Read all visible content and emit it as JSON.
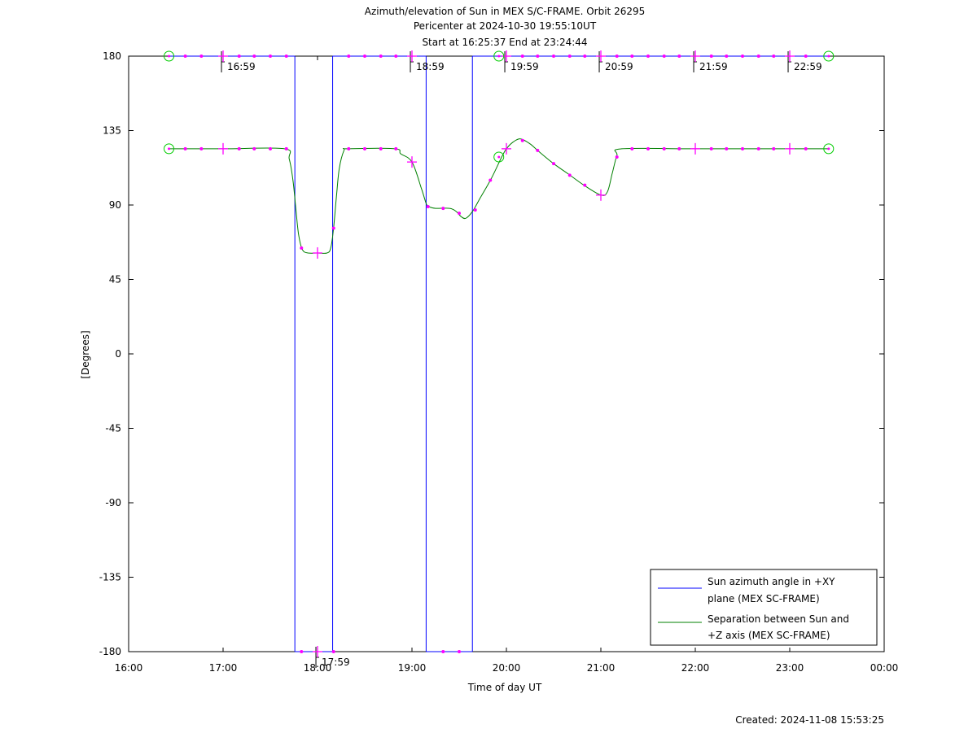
{
  "chart_data": {
    "type": "line",
    "title": [
      "Azimuth/elevation of Sun in MEX S/C-FRAME.  Orbit 26295",
      "Pericenter at 2024-10-30 19:55:10UT",
      "Start at 16:25:37 End at 23:24:44"
    ],
    "xlabel": "Time of day UT",
    "ylabel": "[Degrees]",
    "xlim": [
      16.0,
      24.0
    ],
    "ylim": [
      -180,
      180
    ],
    "x_ticks": [
      16,
      17,
      18,
      19,
      20,
      21,
      22,
      23,
      24
    ],
    "x_tick_labels": [
      "16:00",
      "17:00",
      "18:00",
      "19:00",
      "20:00",
      "21:00",
      "22:00",
      "23:00",
      "00:00"
    ],
    "y_ticks": [
      180,
      135,
      90,
      45,
      0,
      -45,
      -90,
      -135,
      -180
    ],
    "y_tick_labels": [
      "180",
      "135",
      "90",
      "45",
      "0",
      "-45",
      "-90",
      "-135",
      "-180"
    ],
    "legend_position": "bottom-right",
    "footer": "Created: 2024-11-08 15:53:25",
    "colors": {
      "azimuth": "#0000ff",
      "separation": "#008000",
      "markers": "#ff00ff",
      "circles": "#00cc00"
    },
    "series": [
      {
        "name": "Sun azimuth angle in +XY plane (MEX SC-FRAME)",
        "legend_lines": [
          "Sun azimuth angle in +XY",
          "plane (MEX SC-FRAME)"
        ],
        "color": "#0000ff",
        "segments": [
          [
            [
              16.427,
              180
            ],
            [
              17.76,
              180
            ]
          ],
          [
            [
              17.76,
              180
            ],
            [
              17.76,
              -180
            ]
          ],
          [
            [
              17.76,
              -180
            ],
            [
              18.16,
              -180
            ]
          ],
          [
            [
              18.16,
              -180
            ],
            [
              18.16,
              180
            ]
          ],
          [
            [
              18.16,
              180
            ],
            [
              19.15,
              180
            ]
          ],
          [
            [
              19.15,
              180
            ],
            [
              19.15,
              -180
            ]
          ],
          [
            [
              19.15,
              -180
            ],
            [
              19.64,
              -180
            ]
          ],
          [
            [
              19.64,
              -180
            ],
            [
              19.64,
              180
            ]
          ],
          [
            [
              19.64,
              180
            ],
            [
              23.412,
              180
            ]
          ]
        ]
      },
      {
        "name": "Separation between Sun and +Z axis (MEX SC-FRAME)",
        "legend_lines": [
          "Separation between Sun and",
          "+Z axis (MEX SC-FRAME)"
        ],
        "color": "#008000",
        "points": [
          [
            16.427,
            124
          ],
          [
            17.0,
            124
          ],
          [
            17.65,
            124
          ],
          [
            17.7,
            118
          ],
          [
            17.74,
            105
          ],
          [
            17.77,
            88
          ],
          [
            17.8,
            72
          ],
          [
            17.84,
            63
          ],
          [
            17.9,
            61
          ],
          [
            18.0,
            61
          ],
          [
            18.1,
            61
          ],
          [
            18.14,
            64
          ],
          [
            18.17,
            76
          ],
          [
            18.2,
            95
          ],
          [
            18.23,
            112
          ],
          [
            18.28,
            123
          ],
          [
            18.32,
            124
          ],
          [
            18.82,
            124
          ],
          [
            18.88,
            121
          ],
          [
            19.0,
            116
          ],
          [
            19.1,
            100
          ],
          [
            19.15,
            91
          ],
          [
            19.18,
            89
          ],
          [
            19.25,
            88
          ],
          [
            19.4,
            88
          ],
          [
            19.47,
            86
          ],
          [
            19.52,
            83
          ],
          [
            19.57,
            82
          ],
          [
            19.64,
            86
          ],
          [
            19.72,
            94
          ],
          [
            19.84,
            106
          ],
          [
            19.95,
            119
          ],
          [
            20.0,
            124
          ],
          [
            20.07,
            128
          ],
          [
            20.15,
            130
          ],
          [
            20.25,
            127
          ],
          [
            20.35,
            122
          ],
          [
            20.5,
            115
          ],
          [
            20.65,
            109
          ],
          [
            20.82,
            102
          ],
          [
            21.0,
            96
          ],
          [
            21.07,
            98
          ],
          [
            21.12,
            109
          ],
          [
            21.17,
            120
          ],
          [
            21.22,
            124
          ],
          [
            22.0,
            124
          ],
          [
            23.0,
            124
          ],
          [
            23.412,
            124
          ]
        ]
      }
    ],
    "orbit_labels": [
      {
        "text": "16:59",
        "x": 16.983,
        "y": 180
      },
      {
        "text": "17:59",
        "x": 17.983,
        "y": -180
      },
      {
        "text": "18:59",
        "x": 18.983,
        "y": 180
      },
      {
        "text": "19:59",
        "x": 19.983,
        "y": 180
      },
      {
        "text": "20:59",
        "x": 20.983,
        "y": 180
      },
      {
        "text": "21:59",
        "x": 21.983,
        "y": 180
      },
      {
        "text": "22:59",
        "x": 22.983,
        "y": 180
      }
    ],
    "small_markers": [
      [
        16.6,
        180
      ],
      [
        16.77,
        180
      ],
      [
        17.17,
        180
      ],
      [
        17.33,
        180
      ],
      [
        17.5,
        180
      ],
      [
        17.67,
        180
      ],
      [
        18.33,
        180
      ],
      [
        18.5,
        180
      ],
      [
        18.67,
        180
      ],
      [
        18.83,
        180
      ],
      [
        20.17,
        180
      ],
      [
        20.33,
        180
      ],
      [
        20.5,
        180
      ],
      [
        20.67,
        180
      ],
      [
        20.83,
        180
      ],
      [
        21.17,
        180
      ],
      [
        21.33,
        180
      ],
      [
        21.5,
        180
      ],
      [
        21.67,
        180
      ],
      [
        21.83,
        180
      ],
      [
        22.17,
        180
      ],
      [
        22.33,
        180
      ],
      [
        22.5,
        180
      ],
      [
        22.67,
        180
      ],
      [
        22.83,
        180
      ],
      [
        23.17,
        180
      ],
      [
        17.83,
        -180
      ],
      [
        18.17,
        -180
      ],
      [
        19.33,
        -180
      ],
      [
        19.5,
        -180
      ],
      [
        16.6,
        124
      ],
      [
        16.77,
        124
      ],
      [
        17.17,
        124
      ],
      [
        17.33,
        124
      ],
      [
        17.5,
        124
      ],
      [
        17.67,
        124
      ],
      [
        17.83,
        64
      ],
      [
        18.17,
        76
      ],
      [
        18.33,
        124
      ],
      [
        18.5,
        124
      ],
      [
        18.67,
        124
      ],
      [
        18.83,
        124
      ],
      [
        19.17,
        89
      ],
      [
        19.33,
        88
      ],
      [
        19.5,
        85
      ],
      [
        19.67,
        87
      ],
      [
        19.83,
        105
      ],
      [
        20.17,
        129
      ],
      [
        20.33,
        123
      ],
      [
        20.5,
        115
      ],
      [
        20.67,
        108
      ],
      [
        20.83,
        102
      ],
      [
        21.17,
        119
      ],
      [
        21.33,
        124
      ],
      [
        21.5,
        124
      ],
      [
        21.67,
        124
      ],
      [
        21.83,
        124
      ],
      [
        22.17,
        124
      ],
      [
        22.33,
        124
      ],
      [
        22.5,
        124
      ],
      [
        22.67,
        124
      ],
      [
        22.83,
        124
      ],
      [
        23.17,
        124
      ]
    ],
    "hour_markers": [
      [
        17.0,
        180
      ],
      [
        19.0,
        180
      ],
      [
        20.0,
        180
      ],
      [
        21.0,
        180
      ],
      [
        22.0,
        180
      ],
      [
        23.0,
        180
      ],
      [
        18.0,
        -180
      ],
      [
        17.0,
        124
      ],
      [
        18.0,
        61
      ],
      [
        19.0,
        116
      ],
      [
        20.0,
        124
      ],
      [
        21.0,
        96
      ],
      [
        22.0,
        124
      ],
      [
        23.0,
        124
      ]
    ],
    "circle_markers": [
      [
        16.427,
        180
      ],
      [
        23.412,
        180
      ],
      [
        19.92,
        180
      ],
      [
        16.427,
        124
      ],
      [
        23.412,
        124
      ],
      [
        19.92,
        119
      ]
    ]
  }
}
